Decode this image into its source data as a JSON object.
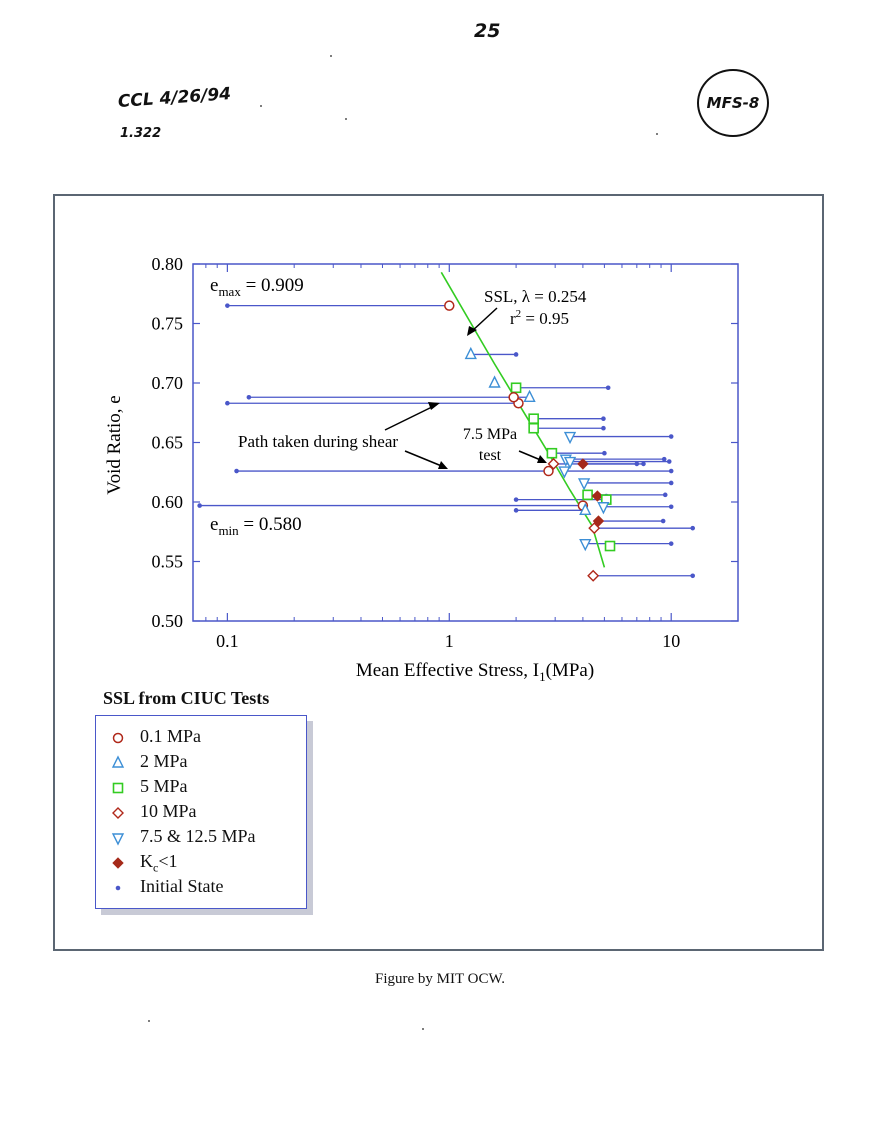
{
  "page": {
    "page_number": "25",
    "handwritten_note": "CCL 4/26/94",
    "handwritten_sub": "1.322",
    "stamp": "MFS-8",
    "caption": "Figure by MIT OCW."
  },
  "colors": {
    "frame": "#5b6673",
    "axis": "#4a57c9",
    "path_line": "#4a57c9",
    "ssl_line": "#33cc22",
    "circle": "#b0281a",
    "triangle_up": "#3d8fd6",
    "square": "#33cc22",
    "diamond_open": "#b0281a",
    "triangle_down": "#3d8fd6",
    "diamond_filled": "#a52a1a",
    "initial_state": "#4a57c9"
  },
  "chart_data": {
    "type": "scatter",
    "title": "",
    "xlabel": "Mean Effective Stress, I",
    "xlabel_sub": "1",
    "xlabel_tail": "(MPa)",
    "ylabel": "Void Ratio, e",
    "x_scale": "log",
    "xlim": [
      0.07,
      20
    ],
    "ylim": [
      0.5,
      0.8
    ],
    "x_ticks": [
      0.1,
      1,
      10
    ],
    "x_tick_labels": [
      "0.1",
      "1",
      "10"
    ],
    "y_ticks": [
      0.5,
      0.55,
      0.6,
      0.65,
      0.7,
      0.75,
      0.8
    ],
    "y_tick_labels": [
      "0.50",
      "0.55",
      "0.60",
      "0.65",
      "0.70",
      "0.75",
      "0.80"
    ],
    "grid": false,
    "ssl_line": {
      "label_main": "SSL, λ = 0.254",
      "label_r2": "r2 = 0.95",
      "lambda": 0.254,
      "r2": 0.95,
      "points": [
        [
          0.92,
          0.793
        ],
        [
          1.6,
          0.716
        ],
        [
          2.7,
          0.646
        ],
        [
          3.5,
          0.61
        ],
        [
          4.4,
          0.58
        ],
        [
          5.0,
          0.545
        ]
      ]
    },
    "annotations": {
      "emax": "e",
      "emax_sub": "max",
      "emax_value": " = 0.909",
      "emin": "e",
      "emin_sub": "min",
      "emin_value": " = 0.580",
      "shear_path": "Path taken during shear",
      "test_line1": "7.5 MPa",
      "test_line2": "test"
    },
    "legend": {
      "title": "SSL from CIUC Tests",
      "position": "below-left",
      "entries": [
        {
          "marker": "circle",
          "label": "0.1 MPa"
        },
        {
          "marker": "triangle_up",
          "label": "2 MPa"
        },
        {
          "marker": "square",
          "label": "5 MPa"
        },
        {
          "marker": "diamond_open",
          "label": "10 MPa"
        },
        {
          "marker": "triangle_down",
          "label": "7.5 & 12.5 MPa"
        },
        {
          "marker": "diamond_filled",
          "label": "K",
          "sub": "c",
          "tail": "<1"
        },
        {
          "marker": "initial_state",
          "label": "Initial State"
        }
      ]
    },
    "tests": [
      {
        "marker": "circle",
        "initial": [
          0.1,
          0.765
        ],
        "final": [
          1.0,
          0.765
        ]
      },
      {
        "marker": "triangle_up",
        "initial": [
          2.0,
          0.724
        ],
        "final": [
          1.25,
          0.724
        ]
      },
      {
        "marker": "square",
        "initial": [
          5.2,
          0.696
        ],
        "final": [
          2.0,
          0.696
        ]
      },
      {
        "marker": "triangle_up",
        "initial": [
          0.125,
          0.688
        ],
        "final": [
          2.3,
          0.688
        ]
      },
      {
        "marker": "circle",
        "initial": [
          0.1,
          0.683
        ],
        "final": [
          2.05,
          0.683
        ]
      },
      {
        "marker": "triangle_up",
        "initial": [
          1.6,
          0.7
        ],
        "final": [
          1.6,
          0.7
        ]
      },
      {
        "marker": "circle",
        "initial": [
          1.95,
          0.688
        ],
        "final": [
          1.95,
          0.688
        ]
      },
      {
        "marker": "square",
        "initial": [
          4.95,
          0.67
        ],
        "final": [
          2.4,
          0.67
        ]
      },
      {
        "marker": "square",
        "initial": [
          4.95,
          0.662
        ],
        "final": [
          2.4,
          0.662
        ]
      },
      {
        "marker": "triangle_down",
        "initial": [
          10.0,
          0.655
        ],
        "final": [
          3.5,
          0.655
        ]
      },
      {
        "marker": "square",
        "initial": [
          5.0,
          0.641
        ],
        "final": [
          2.9,
          0.641
        ]
      },
      {
        "marker": "triangle_down",
        "initial": [
          9.3,
          0.636
        ],
        "final": [
          3.35,
          0.636
        ]
      },
      {
        "marker": "triangle_down",
        "initial": [
          9.8,
          0.634
        ],
        "final": [
          3.5,
          0.634
        ]
      },
      {
        "marker": "diamond_filled",
        "initial": [
          7.0,
          0.632
        ],
        "final": [
          4.0,
          0.632
        ]
      },
      {
        "marker": "diamond_open",
        "initial": [
          7.5,
          0.632
        ],
        "final": [
          2.95,
          0.632
        ]
      },
      {
        "marker": "circle",
        "initial": [
          0.11,
          0.626
        ],
        "final": [
          2.8,
          0.626
        ]
      },
      {
        "marker": "triangle_down",
        "initial": [
          10.0,
          0.626
        ],
        "final": [
          3.3,
          0.626
        ]
      },
      {
        "marker": "triangle_down",
        "initial": [
          10.0,
          0.616
        ],
        "final": [
          4.05,
          0.616
        ]
      },
      {
        "marker": "square",
        "initial": [
          9.4,
          0.606
        ],
        "final": [
          4.2,
          0.606
        ]
      },
      {
        "marker": "diamond_filled",
        "initial": [
          5.1,
          0.605
        ],
        "final": [
          4.65,
          0.605
        ]
      },
      {
        "marker": "square",
        "initial": [
          2.0,
          0.602
        ],
        "final": [
          5.1,
          0.602
        ]
      },
      {
        "marker": "circle",
        "initial": [
          0.075,
          0.597
        ],
        "final": [
          4.0,
          0.597
        ]
      },
      {
        "marker": "triangle_up",
        "initial": [
          2.0,
          0.593
        ],
        "final": [
          4.1,
          0.593
        ]
      },
      {
        "marker": "triangle_down",
        "initial": [
          10.0,
          0.596
        ],
        "final": [
          4.95,
          0.596
        ]
      },
      {
        "marker": "diamond_filled",
        "initial": [
          9.2,
          0.584
        ],
        "final": [
          4.7,
          0.584
        ]
      },
      {
        "marker": "diamond_open",
        "initial": [
          12.5,
          0.578
        ],
        "final": [
          4.5,
          0.578
        ]
      },
      {
        "marker": "triangle_down",
        "initial": [
          10.0,
          0.565
        ],
        "final": [
          4.1,
          0.565
        ]
      },
      {
        "marker": "square",
        "initial": [
          5.3,
          0.563
        ],
        "final": [
          5.3,
          0.563
        ]
      },
      {
        "marker": "diamond_open",
        "initial": [
          12.5,
          0.538
        ],
        "final": [
          4.45,
          0.538
        ]
      }
    ]
  }
}
